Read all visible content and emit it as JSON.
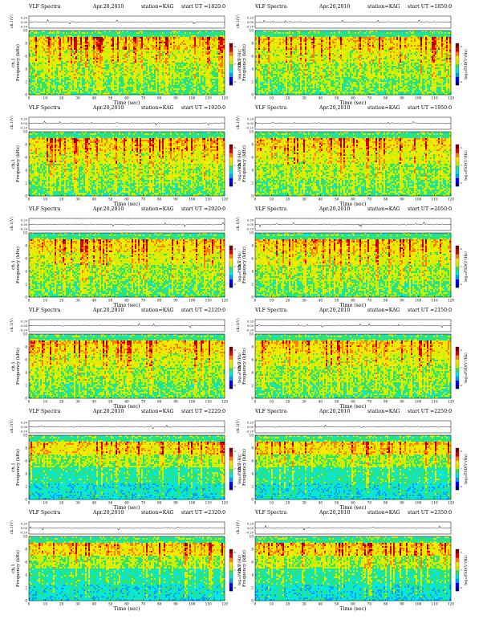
{
  "chart_data": {
    "type": "heatmap",
    "title_prefix": "VLF Spectra",
    "date": "Apr.20,2010",
    "station": "station=KAG",
    "start_prefix": "start  UT =",
    "waveform_label": "ch.1(V)",
    "waveform_ticks": [
      "0.20",
      "0.00",
      "-0.20"
    ],
    "spectrogram_ylabel": "ch.1\nFrequency (kHz)",
    "colorbar_label": "log₁₀PSD(V²/Hz)",
    "xlabel": "Time (sec)",
    "x_ticks": [
      0,
      10,
      20,
      30,
      40,
      50,
      60,
      70,
      80,
      90,
      100,
      110,
      120
    ],
    "xlim": [
      0,
      120
    ],
    "y_ticks": [
      0,
      2,
      4,
      6,
      8,
      10
    ],
    "ylim": [
      0,
      10
    ],
    "colorbar_ticks": [
      "-6",
      "-7",
      "-8"
    ],
    "colormap": [
      "#000080",
      "#0000ff",
      "#00a0ff",
      "#00e8e8",
      "#30e070",
      "#c8f000",
      "#ffe800",
      "#ff8000",
      "#e00000",
      "#800000"
    ],
    "panels": [
      {
        "start": "1820:0"
      },
      {
        "start": "1850:0"
      },
      {
        "start": "1920:0"
      },
      {
        "start": "1950:0"
      },
      {
        "start": "2020:0"
      },
      {
        "start": "2050:0"
      },
      {
        "start": "2120:0"
      },
      {
        "start": "2150:0"
      },
      {
        "start": "2220:0"
      },
      {
        "start": "2250:0"
      },
      {
        "start": "2320:0"
      },
      {
        "start": "2350:0"
      }
    ]
  }
}
